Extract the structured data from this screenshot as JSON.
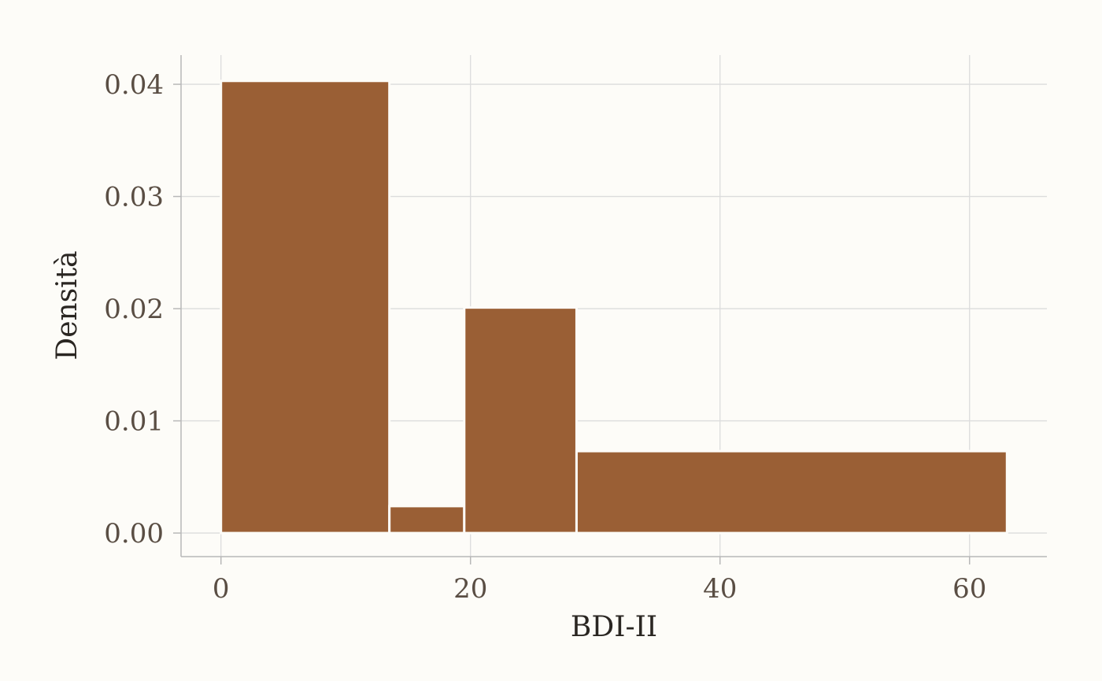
{
  "chart_data": {
    "type": "bar",
    "xlabel": "BDI-II",
    "ylabel": "Densità",
    "xlim": [
      -3.2,
      66.2
    ],
    "ylim": [
      -0.0021,
      0.0426
    ],
    "x_ticks": [
      0,
      20,
      40,
      60
    ],
    "x_tick_labels": [
      "0",
      "20",
      "40",
      "60"
    ],
    "y_ticks": [
      0,
      0.01,
      0.02,
      0.03,
      0.04
    ],
    "y_tick_labels": [
      "0.00",
      "0.01",
      "0.02",
      "0.03",
      "0.04"
    ],
    "grid": true,
    "bins": [
      {
        "x0": 0,
        "x1": 13.5,
        "density": 0.0403
      },
      {
        "x0": 13.5,
        "x1": 19.5,
        "density": 0.0024
      },
      {
        "x0": 19.5,
        "x1": 28.5,
        "density": 0.0201
      },
      {
        "x0": 28.5,
        "x1": 63,
        "density": 0.0073
      }
    ],
    "colors": {
      "bar": "#9a5f35",
      "background": "#fdfcf8"
    }
  }
}
